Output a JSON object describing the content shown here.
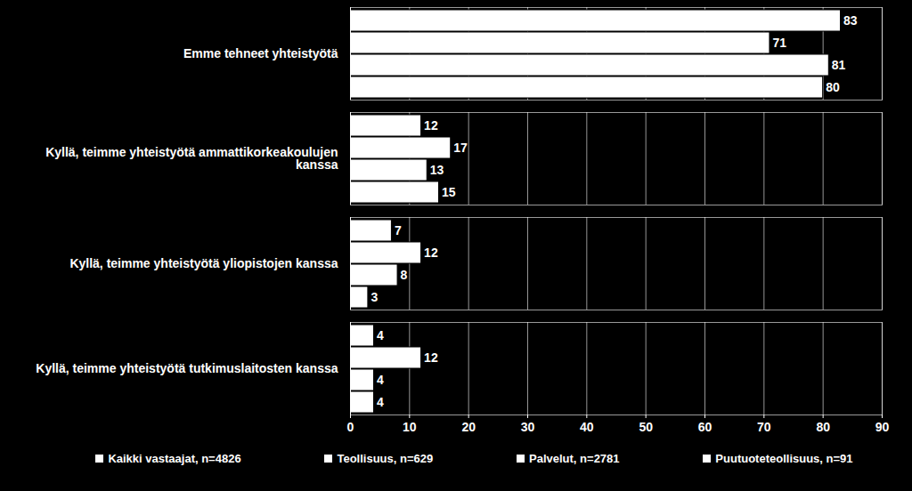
{
  "chart_data": {
    "type": "bar",
    "orientation": "horizontal",
    "categories": [
      "Emme tehneet yhteistyötä",
      "Kyllä, teimme yhteistyötä ammattikorkeakoulujen kanssa",
      "Kyllä, teimme yhteistyötä yliopistojen kanssa",
      "Kyllä, teimme yhteistyötä tutkimuslaitosten kanssa"
    ],
    "series": [
      {
        "name": "Kaikki vastaajat, n=4826",
        "color": "#ffffff",
        "values": [
          83,
          12,
          7,
          4
        ]
      },
      {
        "name": "Teollisuus, n=629",
        "color": "#ffffff",
        "values": [
          71,
          17,
          12,
          12
        ]
      },
      {
        "name": "Palvelut, n=2781",
        "color": "#ffffff",
        "values": [
          81,
          13,
          8,
          4
        ]
      },
      {
        "name": "Puutuoteteollisuus, n=91",
        "color": "#ffffff",
        "values": [
          80,
          15,
          3,
          4
        ]
      }
    ],
    "xlim": [
      0,
      90
    ],
    "xticks": [
      0,
      10,
      20,
      30,
      40,
      50,
      60,
      70,
      80,
      90
    ],
    "grid": true,
    "data_labels": true,
    "legend": "bottom"
  }
}
